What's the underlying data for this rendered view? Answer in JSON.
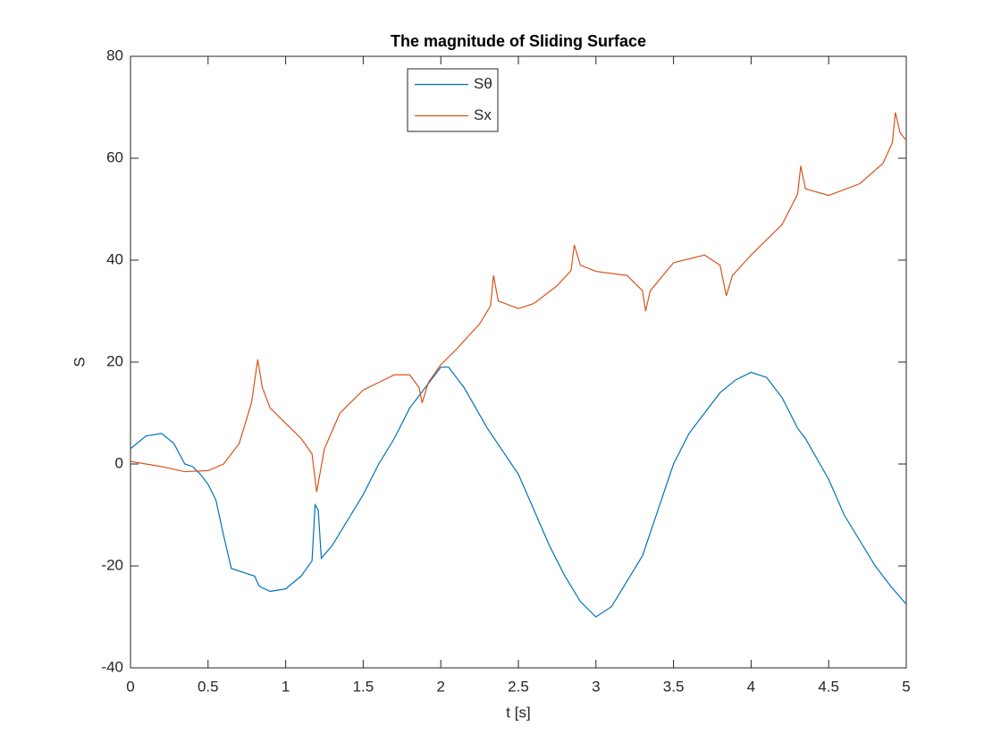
{
  "chart_data": {
    "type": "line",
    "title": "The magnitude of Sliding Surface",
    "x_label": "t [s]",
    "y_label": "S",
    "xlim": [
      0,
      5
    ],
    "ylim": [
      -40,
      80
    ],
    "xticks": [
      0,
      0.5,
      1,
      1.5,
      2,
      2.5,
      3,
      3.5,
      4,
      4.5,
      5
    ],
    "yticks": [
      -40,
      -20,
      0,
      20,
      40,
      60,
      80
    ],
    "legend": "top-center",
    "series": [
      {
        "name": "Sθ",
        "color": "#0072BD",
        "x": [
          0,
          0.1,
          0.2,
          0.28,
          0.35,
          0.4,
          0.45,
          0.5,
          0.55,
          0.6,
          0.65,
          0.75,
          0.8,
          0.83,
          0.9,
          1.0,
          1.1,
          1.17,
          1.19,
          1.21,
          1.23,
          1.3,
          1.5,
          1.6,
          1.7,
          1.8,
          1.9,
          2.0,
          2.05,
          2.15,
          2.3,
          2.5,
          2.6,
          2.7,
          2.8,
          2.9,
          3.0,
          3.1,
          3.3,
          3.4,
          3.5,
          3.6,
          3.7,
          3.8,
          3.9,
          4.0,
          4.1,
          4.2,
          4.3,
          4.35,
          4.5,
          4.6,
          4.7,
          4.8,
          4.9,
          5.0
        ],
        "values": [
          3,
          5.5,
          6,
          4,
          0,
          -0.5,
          -2,
          -4,
          -7,
          -14,
          -20.5,
          -21.5,
          -22,
          -24,
          -25,
          -24.5,
          -22,
          -19,
          -8,
          -9,
          -18.5,
          -16,
          -6,
          0,
          5,
          11,
          15,
          19,
          19,
          15,
          7,
          -2,
          -9,
          -16,
          -22,
          -27,
          -30,
          -28,
          -18,
          -9,
          0,
          6,
          10,
          14,
          16.5,
          18,
          17,
          13,
          7,
          5,
          -3,
          -10,
          -15,
          -20,
          -24,
          -27.5
        ]
      },
      {
        "name": "Sx",
        "color": "#D95319",
        "x": [
          0,
          0.2,
          0.35,
          0.5,
          0.6,
          0.7,
          0.78,
          0.82,
          0.85,
          0.9,
          1.0,
          1.1,
          1.17,
          1.2,
          1.25,
          1.35,
          1.5,
          1.7,
          1.8,
          1.86,
          1.88,
          1.92,
          2.0,
          2.1,
          2.25,
          2.32,
          2.34,
          2.37,
          2.5,
          2.6,
          2.75,
          2.84,
          2.86,
          2.9,
          3.0,
          3.2,
          3.3,
          3.32,
          3.35,
          3.5,
          3.7,
          3.8,
          3.84,
          3.88,
          4.0,
          4.2,
          4.3,
          4.32,
          4.35,
          4.5,
          4.7,
          4.85,
          4.91,
          4.93,
          4.96,
          5.0
        ],
        "values": [
          0.5,
          -0.5,
          -1.5,
          -1.3,
          0,
          4,
          12,
          20.5,
          15,
          11,
          8,
          5,
          2,
          -5.5,
          3,
          10,
          14.5,
          17.5,
          17.5,
          15,
          12,
          16,
          19.5,
          22.5,
          27.5,
          31,
          37,
          32,
          30.5,
          31.5,
          35,
          38,
          43,
          39,
          37.8,
          37,
          34,
          30,
          34,
          39.5,
          41,
          39,
          33,
          37,
          41,
          47,
          53,
          58.5,
          54,
          52.7,
          55,
          59,
          63,
          69,
          65,
          63.5
        ]
      }
    ]
  }
}
